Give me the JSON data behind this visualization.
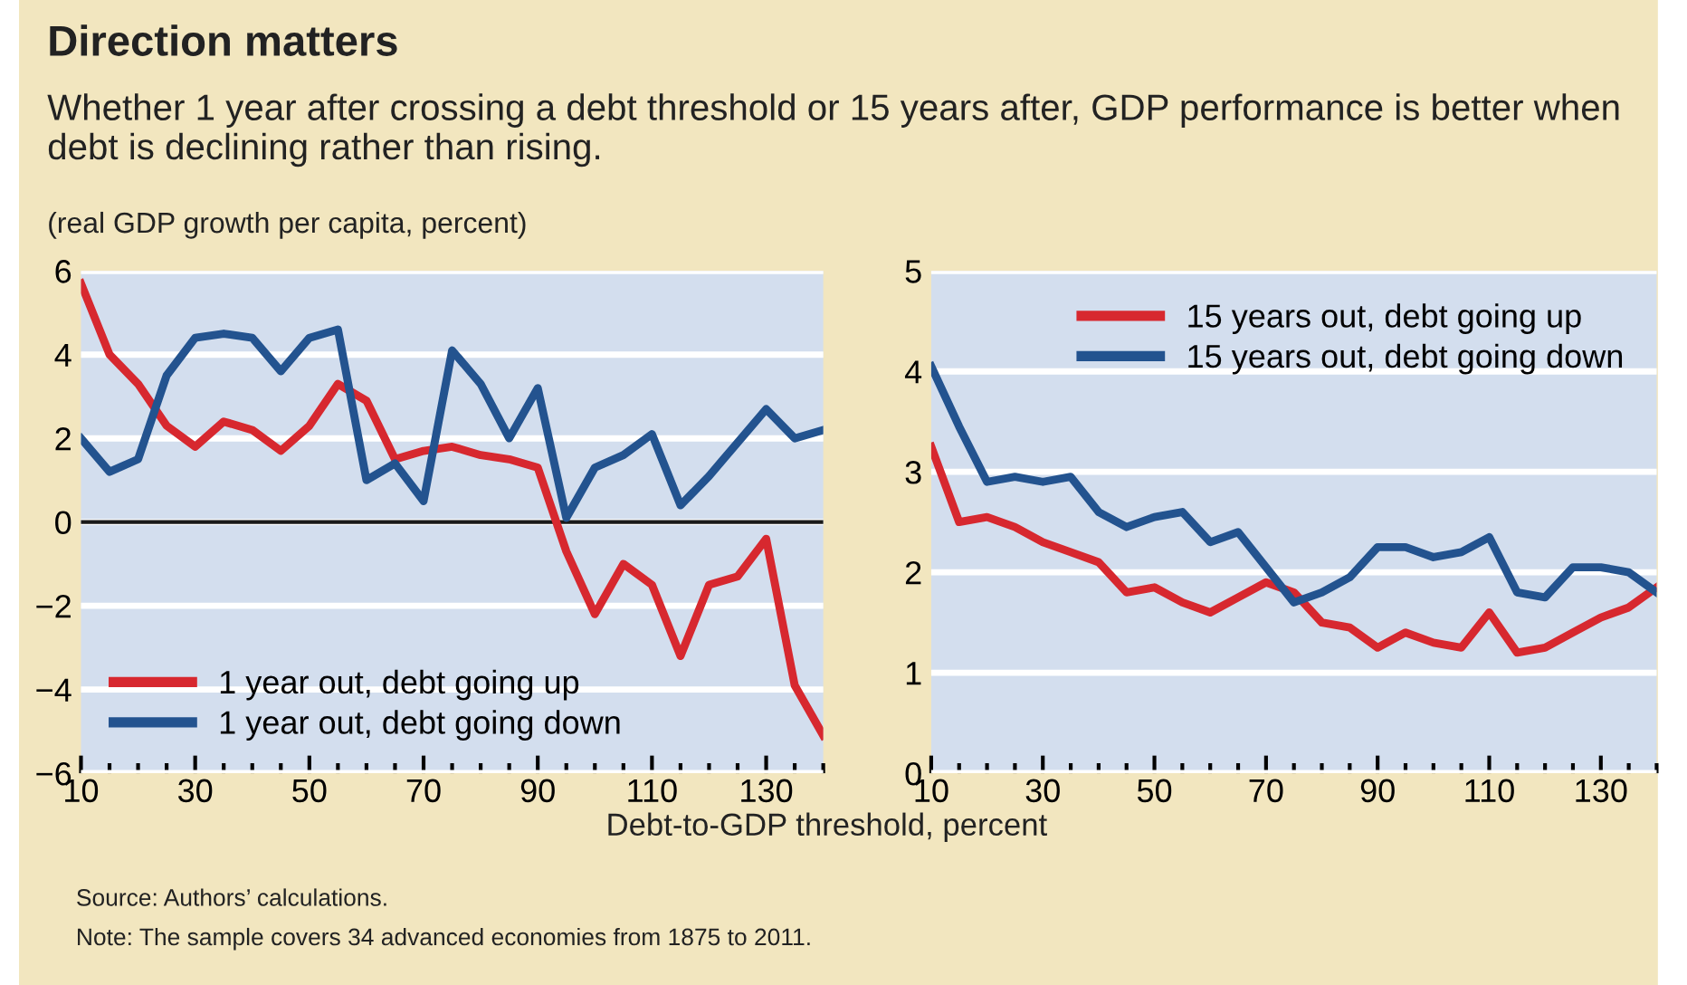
{
  "chart_data": [
    {
      "type": "line",
      "title": "Direction matters",
      "subtitle": "Whether 1 year after crossing a debt threshold or 15 years after, GDP performance is better when debt is declining rather than rising.",
      "ylabel": "(real GDP growth per capita, percent)",
      "annotations": [
        "Source: Authors’ calculations.",
        "Note: The sample covers 34 advanced economies from 1875 to 2011."
      ],
      "x": [
        10,
        15,
        20,
        25,
        30,
        35,
        40,
        45,
        50,
        55,
        60,
        65,
        70,
        75,
        80,
        85,
        90,
        95,
        100,
        105,
        110,
        115,
        120,
        125,
        130,
        135,
        140
      ],
      "series": [
        {
          "name": "1 year out, debt going up",
          "color": "#d7282f",
          "values": [
            5.7,
            4.0,
            3.3,
            2.3,
            1.8,
            2.4,
            2.2,
            1.7,
            2.3,
            3.3,
            2.9,
            1.5,
            1.7,
            1.8,
            1.6,
            1.5,
            1.3,
            -0.7,
            -2.2,
            -1.0,
            -1.5,
            -3.2,
            -1.5,
            -1.3,
            -0.4,
            -3.9,
            -5.1
          ]
        },
        {
          "name": "1 year out, debt going down",
          "color": "#23538f",
          "values": [
            2.0,
            1.2,
            1.5,
            3.5,
            4.4,
            4.5,
            4.4,
            3.6,
            4.4,
            4.6,
            1.0,
            1.4,
            0.5,
            4.1,
            3.3,
            2.0,
            3.2,
            0.1,
            1.3,
            1.6,
            2.1,
            0.4,
            1.1,
            1.9,
            2.7,
            2.0,
            2.2
          ]
        }
      ],
      "xlim": [
        10,
        140
      ],
      "xticks": [
        10,
        {
          "value": 15,
          "label": null
        },
        {
          "value": 20,
          "label": null
        },
        {
          "value": 25,
          "label": null
        },
        30,
        {
          "value": 35,
          "label": null
        },
        {
          "value": 40,
          "label": null
        },
        {
          "value": 45,
          "label": null
        },
        50,
        {
          "value": 55,
          "label": null
        },
        {
          "value": 60,
          "label": null
        },
        {
          "value": 65,
          "label": null
        },
        70,
        {
          "value": 75,
          "label": null
        },
        {
          "value": 80,
          "label": null
        },
        {
          "value": 85,
          "label": null
        },
        90,
        {
          "value": 95,
          "label": null
        },
        {
          "value": 100,
          "label": null
        },
        {
          "value": 105,
          "label": null
        },
        110,
        {
          "value": 115,
          "label": null
        },
        {
          "value": 120,
          "label": null
        },
        {
          "value": 125,
          "label": null
        },
        130,
        {
          "value": 135,
          "label": null
        },
        {
          "value": 140,
          "label": null
        }
      ],
      "ylim": [
        -6,
        6
      ],
      "yticks": [
        {
          "value": -6,
          "label": "−6"
        },
        {
          "value": -4,
          "label": "−4"
        },
        {
          "value": -2,
          "label": "−2"
        },
        0,
        2,
        4,
        6
      ],
      "ref_lines": [
        {
          "axis": "y",
          "value": 0,
          "color": "#1a1a1a"
        }
      ],
      "grid": "y",
      "legend": "bottom left",
      "line_style": "solid",
      "marker": "none"
    },
    {
      "type": "line",
      "xlabel": "Debt-to-GDP threshold, percent",
      "x": [
        10,
        15,
        20,
        25,
        30,
        35,
        40,
        45,
        50,
        55,
        60,
        65,
        70,
        75,
        80,
        85,
        90,
        95,
        100,
        105,
        110,
        115,
        120,
        125,
        130,
        135,
        140
      ],
      "series": [
        {
          "name": "15 years out, debt going up",
          "color": "#d7282f",
          "values": [
            3.25,
            2.5,
            2.55,
            2.45,
            2.3,
            2.2,
            2.1,
            1.8,
            1.85,
            1.7,
            1.6,
            1.75,
            1.9,
            1.8,
            1.5,
            1.45,
            1.25,
            1.4,
            1.3,
            1.25,
            1.6,
            1.2,
            1.25,
            1.4,
            1.55,
            1.65,
            1.85
          ]
        },
        {
          "name": "15 years out, debt going down",
          "color": "#23538f",
          "values": [
            4.05,
            3.45,
            2.9,
            2.95,
            2.9,
            2.95,
            2.6,
            2.45,
            2.55,
            2.6,
            2.3,
            2.4,
            2.05,
            1.7,
            1.8,
            1.95,
            2.25,
            2.25,
            2.15,
            2.2,
            2.35,
            1.8,
            1.75,
            2.05,
            2.05,
            2.0,
            1.8
          ]
        }
      ],
      "xlim": [
        10,
        140
      ],
      "xticks": [
        10,
        {
          "value": 15,
          "label": null
        },
        {
          "value": 20,
          "label": null
        },
        {
          "value": 25,
          "label": null
        },
        30,
        {
          "value": 35,
          "label": null
        },
        {
          "value": 40,
          "label": null
        },
        {
          "value": 45,
          "label": null
        },
        50,
        {
          "value": 55,
          "label": null
        },
        {
          "value": 60,
          "label": null
        },
        {
          "value": 65,
          "label": null
        },
        70,
        {
          "value": 75,
          "label": null
        },
        {
          "value": 80,
          "label": null
        },
        {
          "value": 85,
          "label": null
        },
        90,
        {
          "value": 95,
          "label": null
        },
        {
          "value": 100,
          "label": null
        },
        {
          "value": 105,
          "label": null
        },
        110,
        {
          "value": 115,
          "label": null
        },
        {
          "value": 120,
          "label": null
        },
        {
          "value": 125,
          "label": null
        },
        130,
        {
          "value": 135,
          "label": null
        },
        {
          "value": 140,
          "label": null
        }
      ],
      "ylim": [
        0,
        5
      ],
      "yticks": [
        0,
        1,
        2,
        3,
        4,
        5
      ],
      "grid": "y",
      "legend": "top right",
      "line_style": "solid",
      "marker": "none"
    }
  ]
}
